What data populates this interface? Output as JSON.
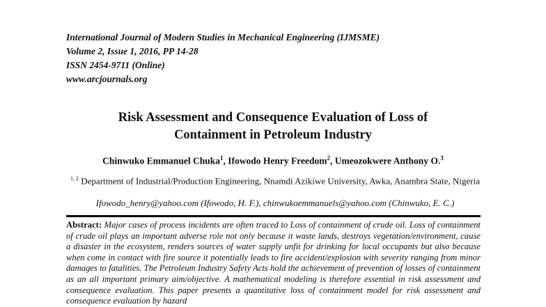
{
  "journal": {
    "name": "International Journal of Modern Studies in Mechanical Engineering (IJMSME)",
    "volume": "Volume 2, Issue 1, 2016, PP 14-28",
    "issn": "ISSN 2454-9711 (Online)",
    "website": "www.arcjournals.org"
  },
  "title": {
    "line1": "Risk Assessment and Consequence Evaluation of Loss of",
    "line2": "Containment in Petroleum Industry"
  },
  "authors": [
    {
      "name": "Chinwuko Emmanuel Chuka",
      "sup": "1"
    },
    {
      "name": "Ifowodo Henry Freedom",
      "sup": "2"
    },
    {
      "name": "Umeozokwere Anthony O.",
      "sup": "3"
    }
  ],
  "affiliation": {
    "sup": "1, 2",
    "text": "Department of Industrial/Production Engineering, Nnamdi Azikiwe University, Awka, Anambra State, Nigeria"
  },
  "emails": "Ifowodo_henry@yahoo.com (Ifowodo, H. F.), chinwukoemmanuels@yahoo.com (Chinwuko, E. C.)",
  "abstract": {
    "label": "Abstract:",
    "text": "Major cases of process incidents are often traced to Loss of containment of crude oil. Loss of containment of crude oil plays an important adverse role not only because it waste lands, destroys vegetation/environment, cause a disaster in the ecosystem, renders sources of water supply unfit for drinking for local occupants but also because when come in contact with fire source it potentially leads to fire accident/explosion with severity ranging from minor damages to fatalities. The Petroleum Industry Safety Acts hold the achievement of prevention of losses of containment as an all important primary aim/objective. A mathematical modeling is therefore essential in risk assessment and consequence evaluation. This paper presents a quantitative loss of containment model for risk assessment and consequence evaluation by hazard"
  }
}
